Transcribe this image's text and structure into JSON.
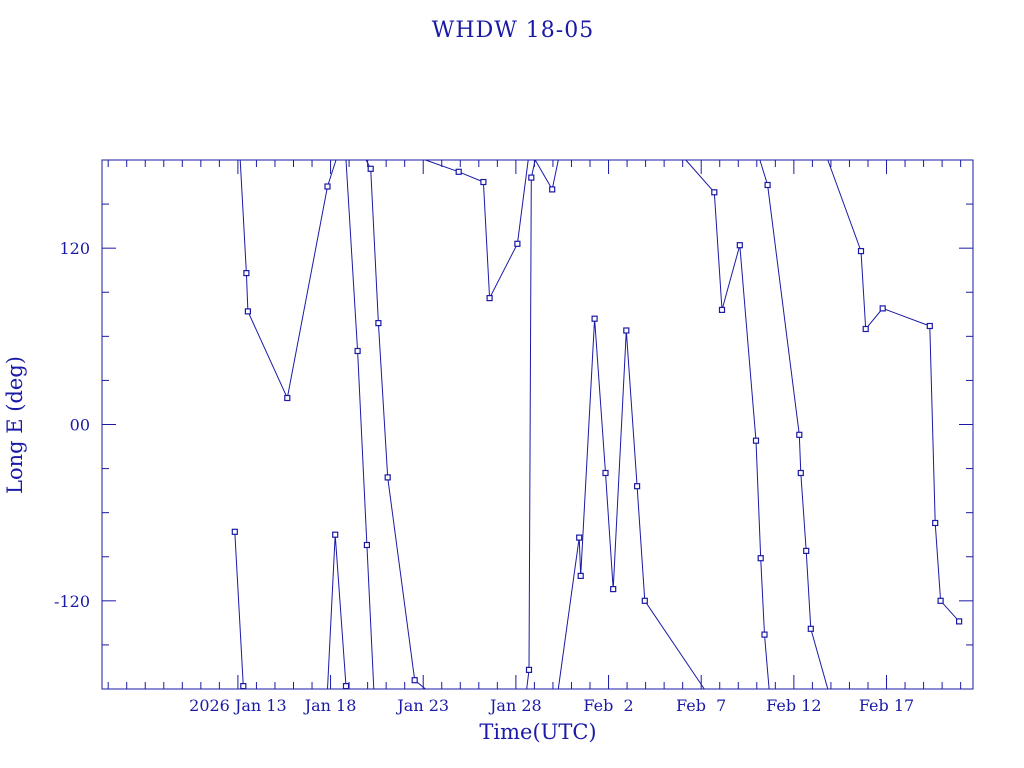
{
  "chart_data": {
    "type": "line",
    "title": "WHDW 18-05",
    "xlabel": "Time(UTC)",
    "ylabel": "Long E (deg)",
    "ylim": [
      -180,
      180
    ],
    "xlim": [
      "2026-01-05T16:00",
      "2026-02-21T16:00"
    ],
    "y_ticks": [
      {
        "value": 120,
        "label": "120"
      },
      {
        "value": 0,
        "label": "00"
      },
      {
        "value": -120,
        "label": "-120"
      }
    ],
    "x_ticks": [
      {
        "date": "2026-01-13",
        "label": "2026 Jan 13"
      },
      {
        "date": "2026-01-18",
        "label": "Jan 18"
      },
      {
        "date": "2026-01-23",
        "label": "Jan 23"
      },
      {
        "date": "2026-01-28",
        "label": "Jan 28"
      },
      {
        "date": "2026-02-02",
        "label": "Feb  2"
      },
      {
        "date": "2026-02-07",
        "label": "Feb  7"
      },
      {
        "date": "2026-02-12",
        "label": "Feb 12"
      },
      {
        "date": "2026-02-17",
        "label": "Feb 17"
      }
    ],
    "grid": false,
    "marker": "square",
    "color": "#1a1aa6",
    "series": [
      {
        "points": [
          [
            "2026-01-12T20:00",
            -73
          ],
          [
            "2026-01-13T07:00",
            -178
          ],
          [
            "2026-01-13T09:00",
            -180
          ]
        ]
      },
      {
        "points": [
          [
            "2026-01-13T03:00",
            180
          ],
          [
            "2026-01-13T11:00",
            103
          ],
          [
            "2026-01-13T13:00",
            77
          ],
          [
            "2026-01-15T16:00",
            18
          ],
          [
            "2026-01-17T20:00",
            162
          ],
          [
            "2026-01-18T07:00",
            180
          ]
        ]
      },
      {
        "points": [
          [
            "2026-01-17T20:00",
            -180
          ],
          [
            "2026-01-18T06:00",
            -75
          ],
          [
            "2026-01-18T20:00",
            -178
          ],
          [
            "2026-01-18T22:00",
            -180
          ]
        ]
      },
      {
        "points": [
          [
            "2026-01-18T20:00",
            180
          ],
          [
            "2026-01-19T11:00",
            50
          ],
          [
            "2026-01-19T23:00",
            -82
          ],
          [
            "2026-01-20T08:00",
            -180
          ]
        ]
      },
      {
        "points": [
          [
            "2026-01-19T22:00",
            180
          ],
          [
            "2026-01-20T04:00",
            174
          ],
          [
            "2026-01-20T14:00",
            69
          ],
          [
            "2026-01-21T02:00",
            -36
          ],
          [
            "2026-01-22T13:00",
            -174
          ],
          [
            "2026-01-23T03:00",
            -180
          ]
        ]
      },
      {
        "points": [
          [
            "2026-01-23T03:00",
            180
          ],
          [
            "2026-01-24T22:00",
            172
          ],
          [
            "2026-01-26T06:00",
            165
          ],
          [
            "2026-01-26T14:00",
            86
          ],
          [
            "2026-01-28T02:00",
            123
          ],
          [
            "2026-01-28T16:00",
            180
          ]
        ]
      },
      {
        "points": [
          [
            "2026-01-28T14:00",
            -180
          ],
          [
            "2026-01-28T17:00",
            -167
          ],
          [
            "2026-01-28T20:00",
            168
          ],
          [
            "2026-01-29T01:00",
            180
          ]
        ]
      },
      {
        "points": [
          [
            "2026-01-29T01:00",
            180
          ],
          [
            "2026-01-29T23:00",
            160
          ],
          [
            "2026-01-30T07:00",
            180
          ]
        ]
      },
      {
        "points": [
          [
            "2026-01-30T07:00",
            -180
          ],
          [
            "2026-01-31T10:00",
            -77
          ],
          [
            "2026-01-31T12:00",
            -103
          ],
          [
            "2026-02-01T06:00",
            72
          ],
          [
            "2026-02-01T20:00",
            -33
          ],
          [
            "2026-02-02T06:00",
            -112
          ],
          [
            "2026-02-02T23:00",
            64
          ],
          [
            "2026-02-03T13:00",
            -42
          ],
          [
            "2026-02-03T23:00",
            -120
          ],
          [
            "2026-02-07T04:00",
            -180
          ]
        ]
      },
      {
        "points": [
          [
            "2026-02-06T04:00",
            180
          ],
          [
            "2026-02-07T17:00",
            158
          ],
          [
            "2026-02-08T03:00",
            78
          ],
          [
            "2026-02-09T02:00",
            122
          ],
          [
            "2026-02-09T23:00",
            -11
          ],
          [
            "2026-02-10T05:00",
            -91
          ],
          [
            "2026-02-10T10:00",
            -143
          ],
          [
            "2026-02-10T16:00",
            -180
          ]
        ]
      },
      {
        "points": [
          [
            "2026-02-10T04:00",
            180
          ],
          [
            "2026-02-10T14:00",
            163
          ],
          [
            "2026-02-12T07:00",
            -7
          ],
          [
            "2026-02-12T09:00",
            -33
          ],
          [
            "2026-02-12T16:00",
            -86
          ],
          [
            "2026-02-12T22:00",
            -139
          ],
          [
            "2026-02-13T20:00",
            -180
          ]
        ]
      },
      {
        "points": [
          [
            "2026-02-13T20:00",
            180
          ],
          [
            "2026-02-15T15:00",
            118
          ],
          [
            "2026-02-15T21:00",
            65
          ],
          [
            "2026-02-16T19:00",
            79
          ],
          [
            "2026-02-19T08:00",
            67
          ],
          [
            "2026-02-19T15:00",
            -67
          ],
          [
            "2026-02-19T22:00",
            -120
          ],
          [
            "2026-02-20T22:00",
            -134
          ]
        ]
      }
    ]
  }
}
